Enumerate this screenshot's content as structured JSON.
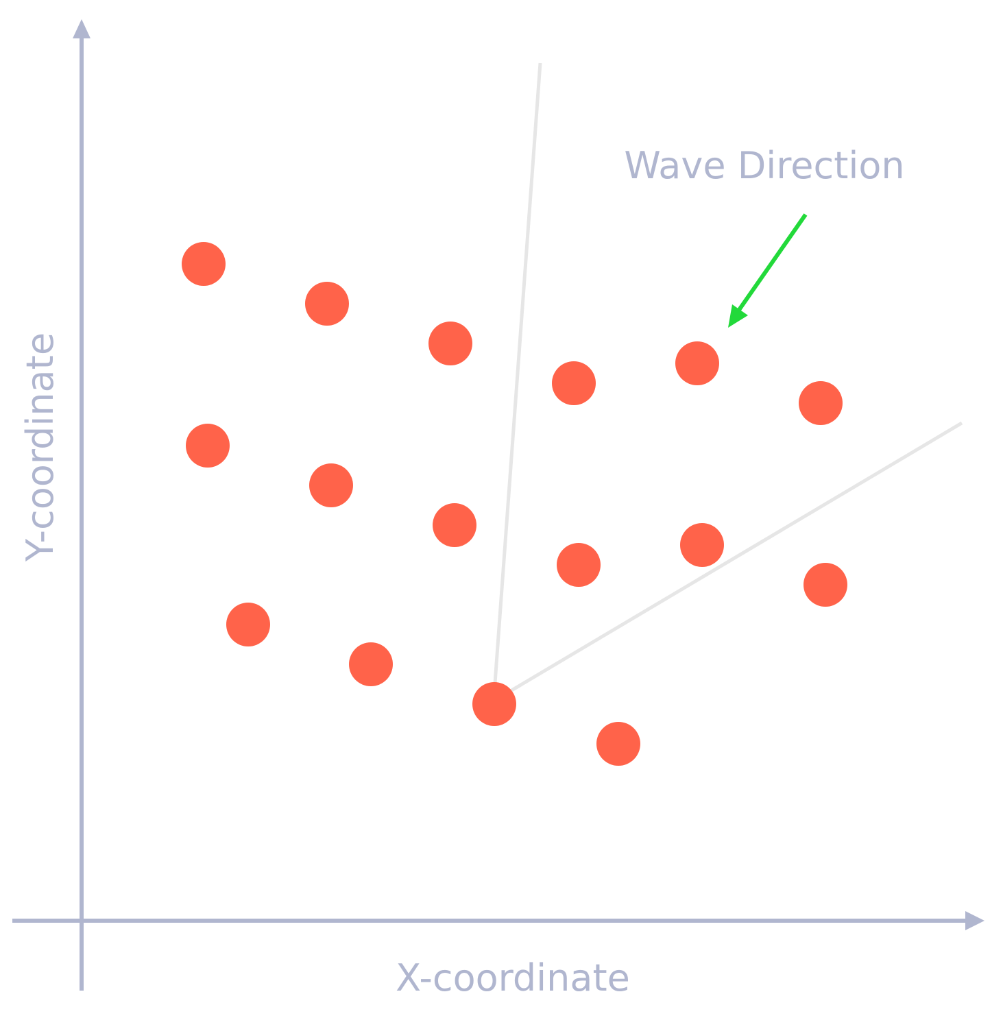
{
  "diagram": {
    "x_axis_label": "X-coordinate",
    "y_axis_label": "Y-coordinate",
    "annotation": {
      "text": "Wave Direction",
      "arrow_color": "#22d93a"
    },
    "colors": {
      "axis": "#b0b6cf",
      "point": "#ff634a",
      "guide_line": "#e6e6e6",
      "background": "#ffffff"
    }
  }
}
